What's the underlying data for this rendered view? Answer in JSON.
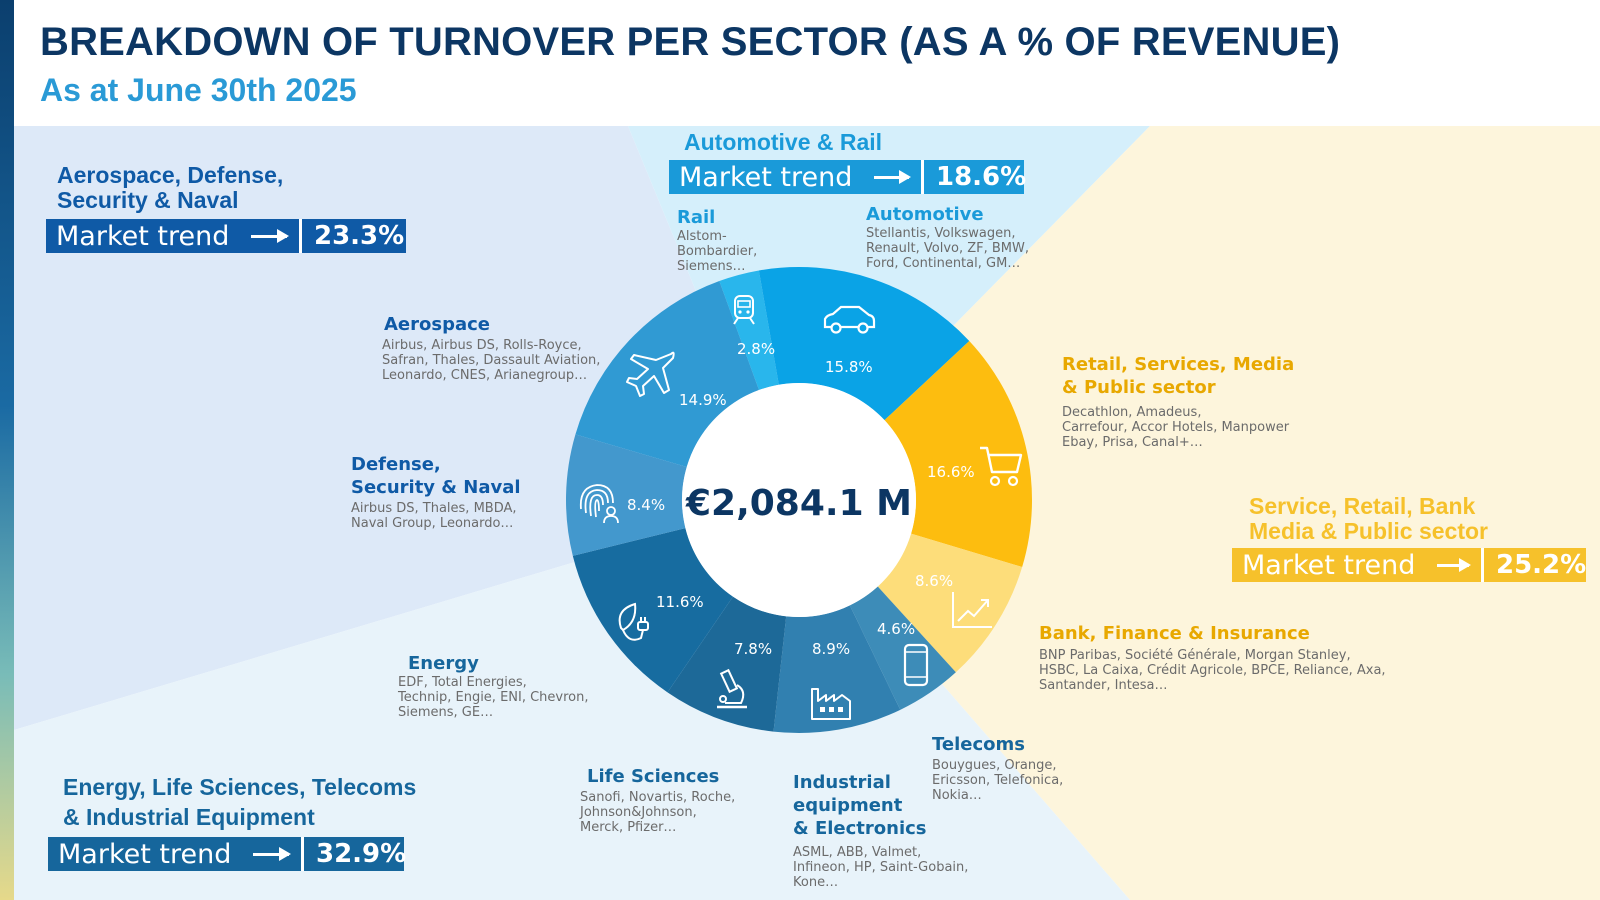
{
  "header": {
    "title": "BREAKDOWN OF TURNOVER PER SECTOR (AS A % OF REVENUE)",
    "subtitle": "As at June 30th 2025"
  },
  "colors": {
    "navy": "#0c3663",
    "aero_group": "#0f5aa6",
    "auto_group": "#1a9ad9",
    "service_group": "#f6c12b",
    "energy_group": "#16669c",
    "bank_label": "#e8a800"
  },
  "groups": [
    {
      "id": "aero",
      "title_lines": [
        "Aerospace, Defense,",
        "Security & Naval"
      ],
      "trend_label": "Market trend",
      "trend_icon": "arrow-right-icon",
      "share": "23.3%"
    },
    {
      "id": "auto",
      "title_lines": [
        "Automotive & Rail"
      ],
      "trend_label": "Market trend",
      "trend_icon": "arrow-right-icon",
      "share": "18.6%"
    },
    {
      "id": "service",
      "title_lines": [
        "Service, Retail, Bank",
        "Media & Public sector"
      ],
      "trend_label": "Market trend",
      "trend_icon": "arrow-right-icon",
      "share": "25.2%"
    },
    {
      "id": "energy",
      "title_lines": [
        "Energy, Life Sciences, Telecoms",
        "& Industrial Equipment"
      ],
      "trend_label": "Market trend",
      "trend_icon": "arrow-right-icon",
      "share": "32.9%"
    }
  ],
  "sectors": [
    {
      "name_lines": [
        "Rail"
      ],
      "clients": [
        "Alstom-",
        "Bombardier,",
        "Siemens…"
      ],
      "icon": "train-icon"
    },
    {
      "name_lines": [
        "Automotive"
      ],
      "clients": [
        "Stellantis, Volkswagen,",
        "Renault, Volvo, ZF, BMW,",
        "Ford, Continental, GM…"
      ],
      "icon": "car-icon"
    },
    {
      "name_lines": [
        "Retail, Services, Media",
        "& Public sector"
      ],
      "clients": [
        "Decathlon, Amadeus,",
        "Carrefour, Accor Hotels, Manpower",
        "Ebay, Prisa, Canal+…"
      ],
      "icon": "shopping-cart-icon"
    },
    {
      "name_lines": [
        "Bank, Finance & Insurance"
      ],
      "clients": [
        "BNP Paribas, Société Générale, Morgan Stanley,",
        "HSBC, La Caixa, Crédit Agricole, BPCE, Reliance, Axa,",
        "Santander, Intesa…"
      ],
      "icon": "growth-chart-icon"
    },
    {
      "name_lines": [
        "Telecoms"
      ],
      "clients": [
        "Bouygues, Orange,",
        "Ericsson, Telefonica,",
        "Nokia…"
      ],
      "icon": "smartphone-icon"
    },
    {
      "name_lines": [
        "Industrial",
        "equipment",
        "& Electronics"
      ],
      "clients": [
        "ASML, ABB, Valmet,",
        "Infineon, HP, Saint-Gobain,",
        "Kone…"
      ],
      "icon": "factory-icon"
    },
    {
      "name_lines": [
        "Life Sciences"
      ],
      "clients": [
        "Sanofi, Novartis, Roche,",
        "Johnson&Johnson,",
        "Merck, Pfizer…"
      ],
      "icon": "microscope-icon"
    },
    {
      "name_lines": [
        "Energy"
      ],
      "clients": [
        "EDF, Total Energies,",
        "Technip, Engie, ENI, Chevron,",
        "Siemens, GE…"
      ],
      "icon": "leaf-plug-icon"
    },
    {
      "name_lines": [
        "Defense,",
        "Security & Naval"
      ],
      "clients": [
        "Airbus DS, Thales, MBDA,",
        "Naval Group, Leonardo…"
      ],
      "icon": "fingerprint-icon"
    },
    {
      "name_lines": [
        "Aerospace"
      ],
      "clients": [
        "Airbus, Airbus DS, Rolls-Royce,",
        "Safran, Thales, Dassault Aviation,",
        "Leonardo, CNES, Arianegroup…"
      ],
      "icon": "airplane-icon"
    }
  ],
  "chart_data": {
    "type": "pie",
    "variant": "donut",
    "center_label": "€2,084.1 M",
    "categories": [
      "Rail",
      "Automotive",
      "Retail, Services, Media & Public sector",
      "Bank, Finance & Insurance",
      "Telecoms",
      "Industrial equipment & Electronics",
      "Life Sciences",
      "Energy",
      "Defense, Security & Naval",
      "Aerospace"
    ],
    "values": [
      2.8,
      15.8,
      16.6,
      8.6,
      4.6,
      8.9,
      7.8,
      11.6,
      8.4,
      14.9
    ],
    "value_labels": [
      "2.8%",
      "15.8%",
      "16.6%",
      "8.6%",
      "4.6%",
      "8.9%",
      "7.8%",
      "11.6%",
      "8.4%",
      "14.9%"
    ],
    "colors": [
      "#29b6ec",
      "#0aa3e6",
      "#fdbd0f",
      "#fddd7a",
      "#3d8cb8",
      "#3180b0",
      "#1d6998",
      "#176ca0",
      "#4398cd",
      "#309ad3"
    ],
    "unit": "% of revenue"
  }
}
